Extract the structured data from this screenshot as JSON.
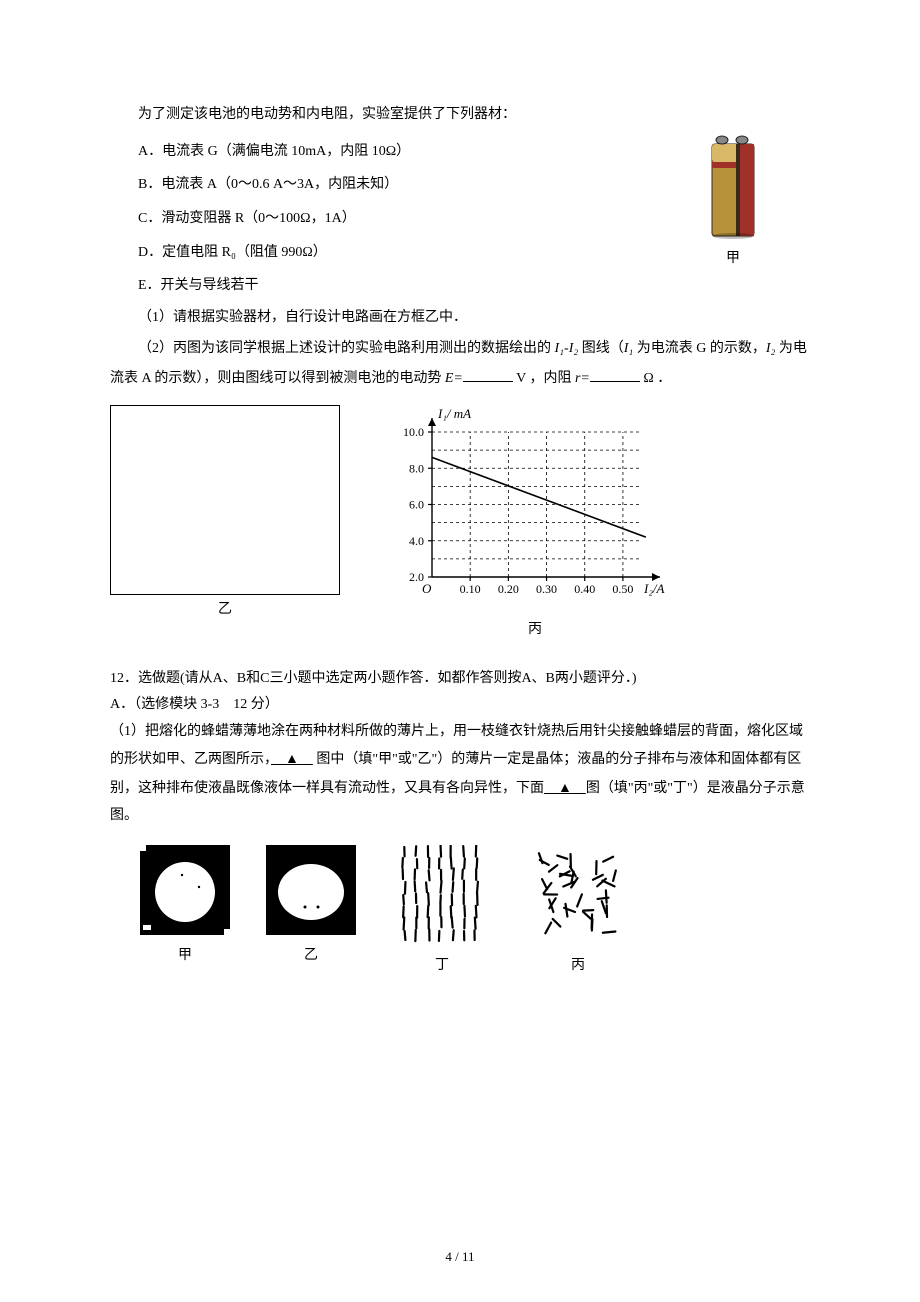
{
  "intro": "为了测定该电池的电动势和内电阻，实验室提供了下列器材：",
  "options": {
    "A": "A．电流表 G（满偏电流 10mA，内阻 10Ω）",
    "B": "B．电流表 A（0～0.6 A～3A，内阻未知）",
    "C": "C．滑动变阻器 R（0～100Ω，1A）",
    "D": "D．定值电阻 R₀（阻值 990Ω）",
    "E": "E．开关与导线若干"
  },
  "battery_caption": "甲",
  "q1": "（1）请根据实验器材，自行设计电路画在方框乙中．",
  "q2_parts": {
    "a": "（2）丙图为该同学根据上述设计的实验电路利用测出的数据绘出的 ",
    "b": " 图线（",
    "c": " 为电流表 G 的示数，",
    "d": " 为电流表 A 的示数），则由图线可以得到被测电池的电动势 ",
    "e": " V ，内阻 ",
    "f": " Ω ．"
  },
  "vars": {
    "I1": "I₁",
    "I2": "I₂",
    "E": "E=",
    "r": "r="
  },
  "caption_yi": "乙",
  "caption_bing": "丙",
  "chart": {
    "ylabel": "I₁/ mA",
    "xlabel": "I₂/A",
    "yticks": [
      "2.0",
      "4.0",
      "6.0",
      "8.0",
      "10.0"
    ],
    "xticks": [
      "0.10",
      "0.20",
      "0.30",
      "0.40",
      "0.50"
    ],
    "origin": "O",
    "axis_color": "#000000",
    "grid_color": "#000000",
    "line_color": "#000000",
    "x_range": [
      0,
      0.55
    ],
    "y_range": [
      2.0,
      10.0
    ],
    "xtick_step": 0.1,
    "ytick_step": 2.0,
    "line_points": [
      [
        0,
        8.6
      ],
      [
        0.56,
        4.2
      ]
    ],
    "grid_dash": "3 3"
  },
  "q12": {
    "head": "12．选做题(请从A、B和C三小题中选定两小题作答．如都作答则按A、B两小题评分．)",
    "subA": "A．（选修模块 3-3　12 分）",
    "body1": "（1）把熔化的蜂蜡薄薄地涂在两种材料所做的薄片上，用一枝缝衣针烧热后用针尖接触蜂蜡层的背面，熔化区域的形状如甲、乙两图所示，",
    "blank_mark": "▲",
    "body1b": " 图中（填\"甲\"或\"乙\"）的薄片一定是晶体；液晶的分子排布与液体和固体都有区别，这种排布使液晶既像液体一样具有流动性，又具有各向异性，下面",
    "body1c": "图（填\"丙\"或\"丁\"）是液晶分子示意图。"
  },
  "imgcaps": {
    "jia": "甲",
    "yi": "乙",
    "ding": "丁",
    "bing": "丙"
  },
  "colors": {
    "black": "#000000",
    "white": "#ffffff",
    "battery_body": "#b8923a",
    "battery_dark": "#3a2a18",
    "battery_red": "#a03028",
    "battery_top": "#d9b867"
  },
  "page": "4 / 11"
}
